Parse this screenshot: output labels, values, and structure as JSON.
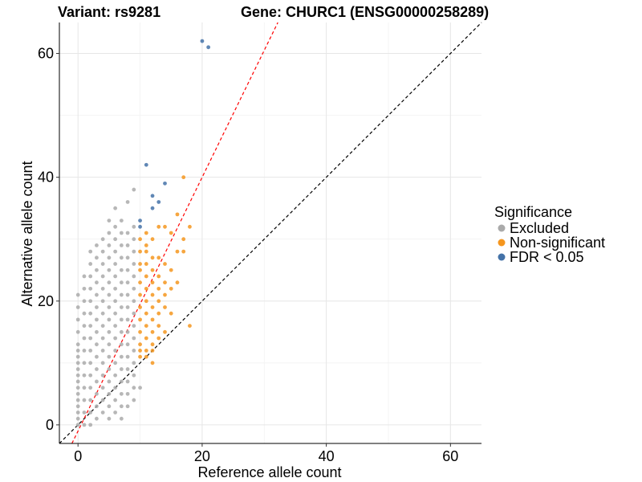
{
  "chart_data": {
    "type": "scatter",
    "title_variant": "Variant: rs9281",
    "title_gene": "Gene: CHURC1 (ENSG00000258289)",
    "xlabel": "Reference allele count",
    "ylabel": "Alternative allele count",
    "xlim": [
      -3,
      65
    ],
    "ylim": [
      -3,
      65
    ],
    "x_ticks": [
      0,
      20,
      40,
      60
    ],
    "y_ticks": [
      0,
      20,
      40,
      60
    ],
    "x_tick_labels": [
      "0",
      "20",
      "40",
      "60"
    ],
    "y_tick_labels": [
      "0",
      "20",
      "40",
      "60"
    ],
    "reference_lines": [
      {
        "name": "identity",
        "slope": 1,
        "intercept": 0,
        "color": "#000000",
        "dash": "dashed"
      },
      {
        "name": "fit",
        "slope": 2.05,
        "intercept": -1,
        "color": "#ff0000",
        "dash": "dashed"
      }
    ],
    "legend": {
      "title": "Significance",
      "position": "right",
      "entries": [
        {
          "label": "Excluded",
          "color": "#aaaaaa"
        },
        {
          "label": "Non-significant",
          "color": "#f5961e"
        },
        {
          "label": "FDR < 0.05",
          "color": "#4472a8"
        }
      ]
    },
    "series": [
      {
        "name": "FDR < 0.05",
        "color": "#4472a8",
        "points": [
          [
            20,
            62
          ],
          [
            21,
            61
          ],
          [
            11,
            42
          ],
          [
            12,
            37
          ],
          [
            14,
            39
          ],
          [
            12,
            35
          ],
          [
            13,
            36
          ],
          [
            10,
            33
          ],
          [
            10,
            32
          ]
        ]
      },
      {
        "name": "Non-significant",
        "color": "#f5961e",
        "points": [
          [
            17,
            40
          ],
          [
            16,
            34
          ],
          [
            18,
            32
          ],
          [
            17,
            30
          ],
          [
            13,
            32
          ],
          [
            14,
            32
          ],
          [
            15,
            31
          ],
          [
            11,
            31
          ],
          [
            12,
            30
          ],
          [
            10,
            30
          ],
          [
            11,
            29
          ],
          [
            16,
            28
          ],
          [
            17,
            28
          ],
          [
            10,
            28
          ],
          [
            11,
            28
          ],
          [
            12,
            27
          ],
          [
            13,
            27
          ],
          [
            14,
            26
          ],
          [
            15,
            25
          ],
          [
            10,
            26
          ],
          [
            11,
            26
          ],
          [
            10,
            25
          ],
          [
            12,
            25
          ],
          [
            11,
            24
          ],
          [
            13,
            24
          ],
          [
            10,
            23
          ],
          [
            12,
            23
          ],
          [
            14,
            23
          ],
          [
            16,
            23
          ],
          [
            11,
            22
          ],
          [
            13,
            22
          ],
          [
            15,
            22
          ],
          [
            10,
            21
          ],
          [
            12,
            21
          ],
          [
            14,
            21
          ],
          [
            11,
            20
          ],
          [
            13,
            20
          ],
          [
            10,
            19
          ],
          [
            12,
            19
          ],
          [
            14,
            19
          ],
          [
            11,
            18
          ],
          [
            13,
            18
          ],
          [
            15,
            18
          ],
          [
            10,
            17
          ],
          [
            12,
            17
          ],
          [
            11,
            16
          ],
          [
            13,
            16
          ],
          [
            18,
            16
          ],
          [
            10,
            15
          ],
          [
            12,
            15
          ],
          [
            14,
            15
          ],
          [
            11,
            14
          ],
          [
            13,
            14
          ],
          [
            10,
            13
          ],
          [
            12,
            13
          ],
          [
            11,
            12
          ],
          [
            12,
            12
          ],
          [
            10,
            11
          ],
          [
            11,
            11
          ],
          [
            12,
            10
          ],
          [
            10,
            12
          ]
        ]
      },
      {
        "name": "Excluded",
        "color": "#aaaaaa",
        "points": [
          [
            9,
            38
          ],
          [
            8,
            36
          ],
          [
            6,
            35
          ],
          [
            7,
            33
          ],
          [
            5,
            33
          ],
          [
            6,
            32
          ],
          [
            9,
            32
          ],
          [
            5,
            31
          ],
          [
            7,
            31
          ],
          [
            8,
            31
          ],
          [
            4,
            30
          ],
          [
            6,
            30
          ],
          [
            9,
            30
          ],
          [
            3,
            29
          ],
          [
            5,
            29
          ],
          [
            7,
            29
          ],
          [
            8,
            29
          ],
          [
            2,
            28
          ],
          [
            4,
            28
          ],
          [
            6,
            28
          ],
          [
            9,
            28
          ],
          [
            3,
            27
          ],
          [
            5,
            27
          ],
          [
            7,
            27
          ],
          [
            8,
            27
          ],
          [
            2,
            26
          ],
          [
            4,
            26
          ],
          [
            6,
            26
          ],
          [
            9,
            26
          ],
          [
            3,
            25
          ],
          [
            5,
            25
          ],
          [
            7,
            25
          ],
          [
            8,
            25
          ],
          [
            1,
            24
          ],
          [
            2,
            24
          ],
          [
            4,
            24
          ],
          [
            6,
            24
          ],
          [
            9,
            24
          ],
          [
            3,
            23
          ],
          [
            5,
            23
          ],
          [
            7,
            23
          ],
          [
            8,
            23
          ],
          [
            1,
            22
          ],
          [
            2,
            22
          ],
          [
            4,
            22
          ],
          [
            6,
            22
          ],
          [
            9,
            22
          ],
          [
            0,
            21
          ],
          [
            3,
            21
          ],
          [
            5,
            21
          ],
          [
            7,
            21
          ],
          [
            8,
            21
          ],
          [
            1,
            20
          ],
          [
            2,
            20
          ],
          [
            4,
            20
          ],
          [
            6,
            20
          ],
          [
            9,
            20
          ],
          [
            0,
            19
          ],
          [
            3,
            19
          ],
          [
            5,
            19
          ],
          [
            7,
            19
          ],
          [
            8,
            19
          ],
          [
            1,
            18
          ],
          [
            2,
            18
          ],
          [
            4,
            18
          ],
          [
            6,
            18
          ],
          [
            9,
            18
          ],
          [
            0,
            17
          ],
          [
            3,
            17
          ],
          [
            5,
            17
          ],
          [
            7,
            17
          ],
          [
            8,
            17
          ],
          [
            1,
            16
          ],
          [
            2,
            16
          ],
          [
            4,
            16
          ],
          [
            6,
            16
          ],
          [
            9,
            16
          ],
          [
            0,
            15
          ],
          [
            3,
            15
          ],
          [
            5,
            15
          ],
          [
            7,
            15
          ],
          [
            8,
            15
          ],
          [
            1,
            14
          ],
          [
            2,
            14
          ],
          [
            4,
            14
          ],
          [
            6,
            14
          ],
          [
            9,
            14
          ],
          [
            0,
            13
          ],
          [
            3,
            13
          ],
          [
            5,
            13
          ],
          [
            7,
            13
          ],
          [
            8,
            13
          ],
          [
            0,
            12
          ],
          [
            1,
            12
          ],
          [
            2,
            12
          ],
          [
            4,
            12
          ],
          [
            6,
            12
          ],
          [
            9,
            12
          ],
          [
            0,
            11
          ],
          [
            3,
            11
          ],
          [
            5,
            11
          ],
          [
            7,
            11
          ],
          [
            8,
            11
          ],
          [
            0,
            10
          ],
          [
            1,
            10
          ],
          [
            2,
            10
          ],
          [
            4,
            10
          ],
          [
            6,
            10
          ],
          [
            9,
            10
          ],
          [
            0,
            9
          ],
          [
            3,
            9
          ],
          [
            5,
            9
          ],
          [
            7,
            9
          ],
          [
            8,
            9
          ],
          [
            0,
            8
          ],
          [
            1,
            8
          ],
          [
            2,
            8
          ],
          [
            4,
            8
          ],
          [
            6,
            8
          ],
          [
            9,
            8
          ],
          [
            0,
            7
          ],
          [
            3,
            7
          ],
          [
            5,
            7
          ],
          [
            7,
            7
          ],
          [
            8,
            7
          ],
          [
            0,
            6
          ],
          [
            1,
            6
          ],
          [
            2,
            6
          ],
          [
            4,
            6
          ],
          [
            6,
            6
          ],
          [
            9,
            6
          ],
          [
            10,
            6
          ],
          [
            0,
            5
          ],
          [
            3,
            5
          ],
          [
            5,
            5
          ],
          [
            7,
            5
          ],
          [
            8,
            5
          ],
          [
            0,
            4
          ],
          [
            1,
            4
          ],
          [
            2,
            4
          ],
          [
            4,
            4
          ],
          [
            6,
            4
          ],
          [
            9,
            4
          ],
          [
            0,
            3
          ],
          [
            3,
            3
          ],
          [
            5,
            3
          ],
          [
            7,
            3
          ],
          [
            8,
            3
          ],
          [
            0,
            2
          ],
          [
            1,
            2
          ],
          [
            2,
            2
          ],
          [
            4,
            2
          ],
          [
            6,
            2
          ],
          [
            0,
            1
          ],
          [
            3,
            1
          ],
          [
            5,
            1
          ],
          [
            7,
            1
          ],
          [
            0,
            0
          ],
          [
            1,
            0
          ],
          [
            2,
            0
          ]
        ]
      }
    ]
  }
}
